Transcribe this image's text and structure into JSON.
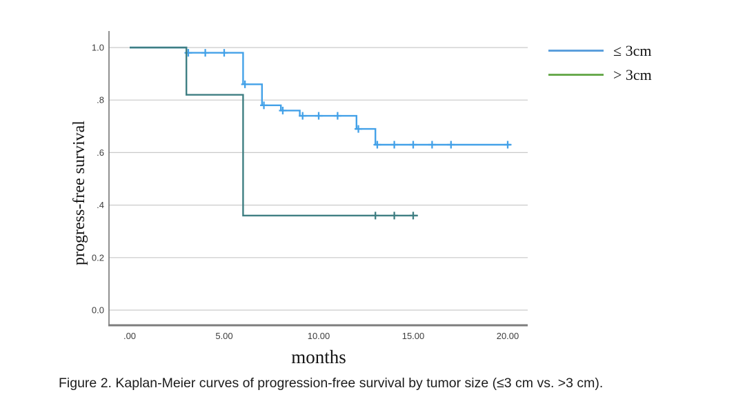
{
  "figure": {
    "caption": "Figure 2. Kaplan-Meier curves of progression-free survival by tumor size (≤3 cm vs. >3 cm)."
  },
  "colors": {
    "grid": "#c9c9c9",
    "axis": "#7d7d7d",
    "tick_text": "#3c3c3c"
  },
  "chart_data": {
    "type": "line",
    "subtype": "kaplan-meier-step",
    "title": "",
    "xlabel": "months",
    "ylabel": "progress-free survival",
    "xlim": [
      0,
      21
    ],
    "ylim": [
      0,
      1.05
    ],
    "grid": "horizontal",
    "legend_position": "outside-top-right",
    "x_ticks": {
      "values": [
        0,
        5,
        10,
        15,
        20
      ],
      "labels": [
        ".00",
        "5.00",
        "10.00",
        "15.00",
        "20.00"
      ]
    },
    "y_ticks": {
      "values": [
        0,
        0.2,
        0.4,
        0.6,
        0.8,
        1.0
      ],
      "labels": [
        "0.0",
        "0.2",
        ".4",
        ".6",
        ".8",
        "1.0"
      ]
    },
    "series": [
      {
        "name": "≤ 3cm",
        "line_color": "#43a1e8",
        "legend_color": "#5b9fdc",
        "steps": [
          [
            0,
            1.0
          ],
          [
            3,
            1.0
          ],
          [
            3,
            0.98
          ],
          [
            6,
            0.98
          ],
          [
            6,
            0.86
          ],
          [
            7,
            0.86
          ],
          [
            7,
            0.78
          ],
          [
            8,
            0.78
          ],
          [
            8,
            0.76
          ],
          [
            9,
            0.76
          ],
          [
            9,
            0.74
          ],
          [
            12,
            0.74
          ],
          [
            12,
            0.69
          ],
          [
            13,
            0.69
          ],
          [
            13,
            0.63
          ],
          [
            20.15,
            0.63
          ]
        ],
        "censor_marks": [
          [
            3.1,
            0.98
          ],
          [
            4,
            0.98
          ],
          [
            5,
            0.98
          ],
          [
            6.1,
            0.86
          ],
          [
            7.1,
            0.78
          ],
          [
            8.1,
            0.76
          ],
          [
            9.15,
            0.74
          ],
          [
            10,
            0.74
          ],
          [
            11,
            0.74
          ],
          [
            12.1,
            0.69
          ],
          [
            13.1,
            0.63
          ],
          [
            14,
            0.63
          ],
          [
            15,
            0.63
          ],
          [
            16,
            0.63
          ],
          [
            17,
            0.63
          ],
          [
            20,
            0.63
          ]
        ]
      },
      {
        "name": "> 3cm",
        "line_color": "#3e7e82",
        "legend_color": "#69aa4e",
        "steps": [
          [
            0,
            1.0
          ],
          [
            3,
            1.0
          ],
          [
            3,
            0.82
          ],
          [
            6,
            0.82
          ],
          [
            6,
            0.36
          ],
          [
            15.25,
            0.36
          ]
        ],
        "censor_marks": [
          [
            13,
            0.36
          ],
          [
            14,
            0.36
          ],
          [
            15,
            0.36
          ]
        ]
      }
    ]
  }
}
